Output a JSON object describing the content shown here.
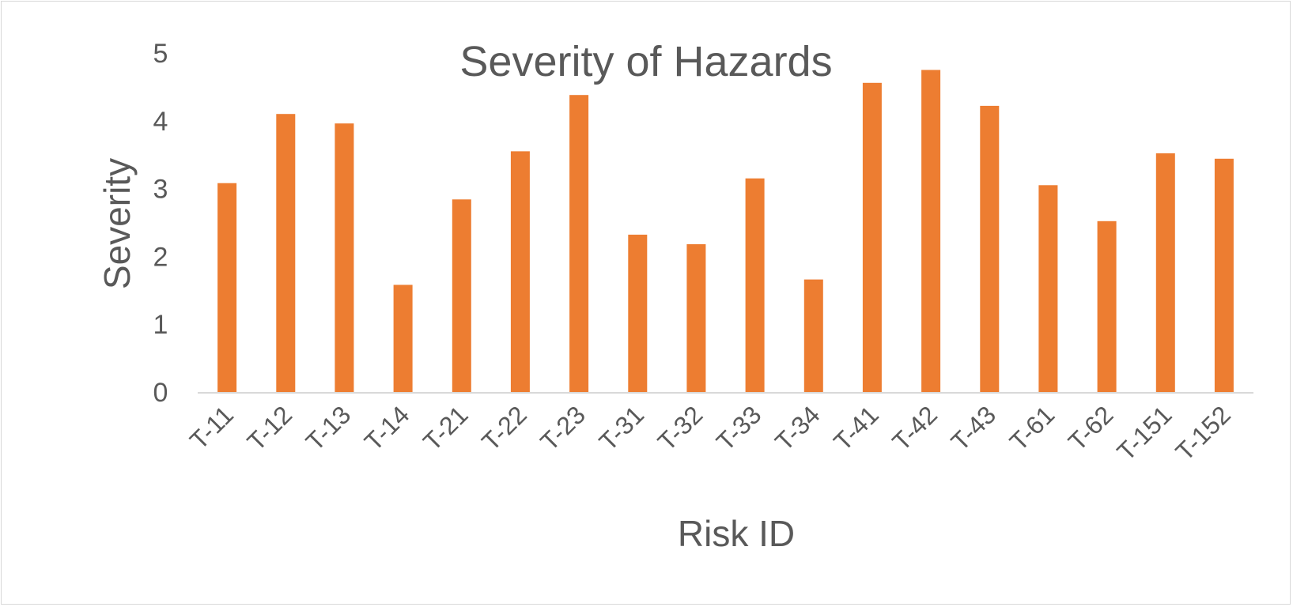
{
  "chart_data": {
    "type": "bar",
    "title": "Severity of Hazards",
    "xlabel": "Risk ID",
    "ylabel": "Severity",
    "ylim": [
      0,
      5
    ],
    "yticks": [
      0,
      1,
      2,
      3,
      4,
      5
    ],
    "grid": false,
    "legend": "none",
    "bar_color": "#ED7D31",
    "categories": [
      "T-11",
      "T-12",
      "T-13",
      "T-14",
      "T-21",
      "T-22",
      "T-23",
      "T-31",
      "T-32",
      "T-33",
      "T-34",
      "T-41",
      "T-42",
      "T-43",
      "T-61",
      "T-62",
      "T-151",
      "T-152"
    ],
    "values": [
      3.08,
      4.1,
      3.96,
      1.58,
      2.84,
      3.55,
      4.38,
      2.32,
      2.18,
      3.15,
      1.66,
      4.56,
      4.75,
      4.22,
      3.05,
      2.52,
      3.52,
      3.44
    ]
  }
}
